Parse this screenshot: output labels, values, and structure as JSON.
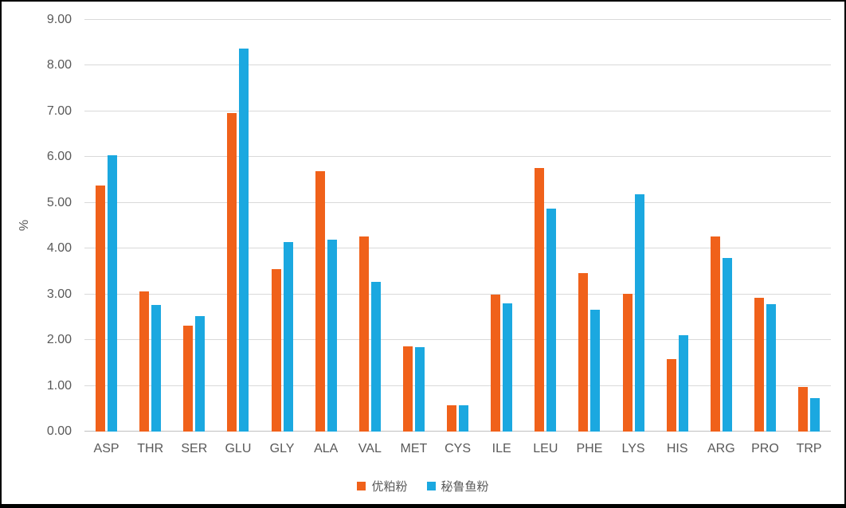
{
  "chart_data": {
    "type": "bar",
    "title": "",
    "xlabel": "",
    "ylabel": "%",
    "ylim": [
      0,
      9
    ],
    "ytick_step": 1,
    "ytick_labels": [
      "0.00",
      "1.00",
      "2.00",
      "3.00",
      "4.00",
      "5.00",
      "6.00",
      "7.00",
      "8.00",
      "9.00"
    ],
    "grid": true,
    "legend_position": "bottom-center",
    "categories": [
      "ASP",
      "THR",
      "SER",
      "GLU",
      "GLY",
      "ALA",
      "VAL",
      "MET",
      "CYS",
      "ILE",
      "LEU",
      "PHE",
      "LYS",
      "HIS",
      "ARG",
      "PRO",
      "TRP"
    ],
    "series": [
      {
        "name": "优粕粉",
        "color": "#F0611A",
        "values": [
          5.38,
          3.06,
          2.32,
          6.97,
          3.55,
          5.69,
          4.26,
          1.86,
          0.57,
          2.99,
          5.76,
          3.47,
          3.02,
          1.59,
          4.26,
          2.92,
          0.97
        ]
      },
      {
        "name": "秘鲁鱼粉",
        "color": "#1BA8E0",
        "values": [
          6.04,
          2.76,
          2.52,
          8.37,
          4.14,
          4.19,
          3.27,
          1.84,
          0.57,
          2.8,
          4.87,
          2.66,
          5.18,
          2.11,
          3.79,
          2.79,
          0.73
        ]
      }
    ],
    "colors": {
      "background": "#FFFFFF",
      "frame_border": "#000000",
      "gridline": "#D9D9D9",
      "axis_line": "#BFBFBF",
      "tick_text": "#595959"
    }
  }
}
